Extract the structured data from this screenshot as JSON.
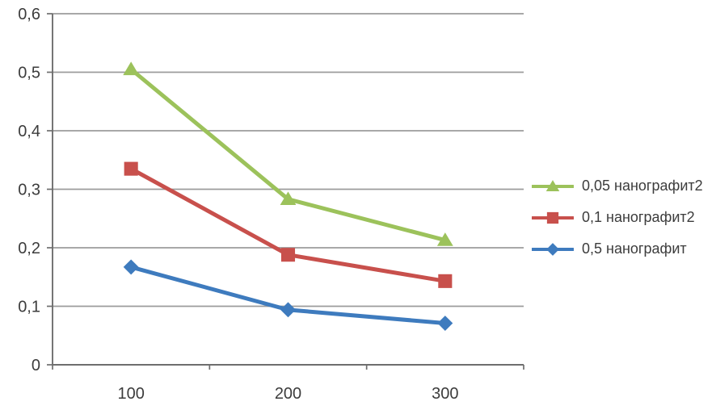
{
  "chart_data": {
    "type": "line",
    "categories": [
      "100",
      "200",
      "300"
    ],
    "series": [
      {
        "name": "0,05 нанографит2",
        "values": [
          0.505,
          0.283,
          0.213
        ],
        "color": "#9cc25b",
        "marker": "triangle"
      },
      {
        "name": "0,1 нанографит2",
        "values": [
          0.335,
          0.188,
          0.143
        ],
        "color": "#c8504c",
        "marker": "square"
      },
      {
        "name": "0,5 нанографит",
        "values": [
          0.167,
          0.094,
          0.071
        ],
        "color": "#3e7bbe",
        "marker": "diamond"
      }
    ],
    "title": "",
    "xlabel": "",
    "ylabel": "",
    "ylim": [
      0,
      0.6
    ],
    "ytick_step": 0.1,
    "ytick_labels": [
      "0",
      "0,1",
      "0,2",
      "0,3",
      "0,4",
      "0,5",
      "0,6"
    ],
    "xtick_labels": [
      "100",
      "200",
      "300"
    ],
    "grid": true,
    "legend_position": "right",
    "colors": {
      "grid": "#9b9b9b",
      "axis": "#6e6e6e",
      "tick_text": "#3c3c3c",
      "background": "#ffffff"
    }
  }
}
